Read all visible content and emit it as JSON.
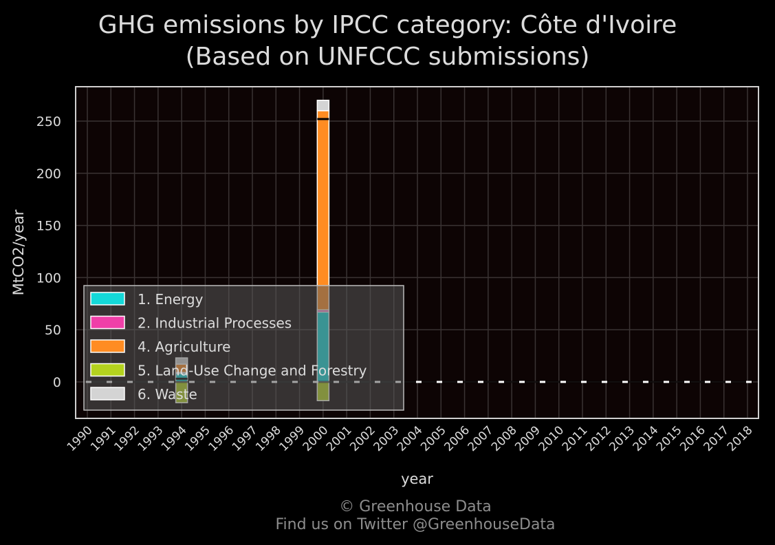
{
  "chart_data": {
    "type": "bar",
    "stacked": true,
    "title_line1": "GHG emissions by IPCC category: Côte d'Ivoire",
    "title_line2": "(Based on UNFCCC submissions)",
    "xlabel": "year",
    "ylabel": "MtCO2/year",
    "ylim": [
      -35,
      283
    ],
    "yticks": [
      0,
      50,
      100,
      150,
      200,
      250
    ],
    "categories": [
      "1990",
      "1991",
      "1992",
      "1993",
      "1994",
      "1995",
      "1996",
      "1997",
      "1998",
      "1999",
      "2000",
      "2001",
      "2002",
      "2003",
      "2004",
      "2005",
      "2006",
      "2007",
      "2008",
      "2009",
      "2010",
      "2011",
      "2012",
      "2013",
      "2014",
      "2015",
      "2016",
      "2017",
      "2018"
    ],
    "series": [
      {
        "name": "1. Energy",
        "color": "#14d9d9",
        "values": [
          null,
          null,
          null,
          null,
          8,
          null,
          null,
          null,
          null,
          null,
          67,
          null,
          null,
          null,
          null,
          null,
          null,
          null,
          null,
          null,
          null,
          null,
          null,
          null,
          null,
          null,
          null,
          null,
          null
        ]
      },
      {
        "name": "2. Industrial Processes",
        "color": "#f03fa8",
        "values": [
          null,
          null,
          null,
          null,
          1,
          null,
          null,
          null,
          null,
          null,
          2,
          null,
          null,
          null,
          null,
          null,
          null,
          null,
          null,
          null,
          null,
          null,
          null,
          null,
          null,
          null,
          null,
          null,
          null
        ]
      },
      {
        "name": "4. Agriculture",
        "color": "#ff8c22",
        "values": [
          null,
          null,
          null,
          null,
          8,
          null,
          null,
          null,
          null,
          null,
          191,
          null,
          null,
          null,
          null,
          null,
          null,
          null,
          null,
          null,
          null,
          null,
          null,
          null,
          null,
          null,
          null,
          null,
          null
        ]
      },
      {
        "name": "5. Land-Use Change and Forestry",
        "color": "#b4d21e",
        "values": [
          null,
          null,
          null,
          null,
          -20,
          null,
          null,
          null,
          null,
          null,
          -18,
          null,
          null,
          null,
          null,
          null,
          null,
          null,
          null,
          null,
          null,
          null,
          null,
          null,
          null,
          null,
          null,
          null,
          null
        ]
      },
      {
        "name": "6. Waste",
        "color": "#d4d4d4",
        "values": [
          null,
          null,
          null,
          null,
          6,
          null,
          null,
          null,
          null,
          null,
          10,
          null,
          null,
          null,
          null,
          null,
          null,
          null,
          null,
          null,
          null,
          null,
          null,
          null,
          null,
          null,
          null,
          null,
          null
        ]
      }
    ],
    "net_line": true,
    "legend_position": "lower-left",
    "grid": true,
    "colors": {
      "background": "#000000",
      "plot_bg": "#0d0404",
      "grid": "#3a3333",
      "text": "#dcdcdc",
      "frame": "#d0d0d0"
    }
  },
  "footer": {
    "line1": "© Greenhouse Data",
    "line2": "Find us on Twitter @GreenhouseData"
  }
}
